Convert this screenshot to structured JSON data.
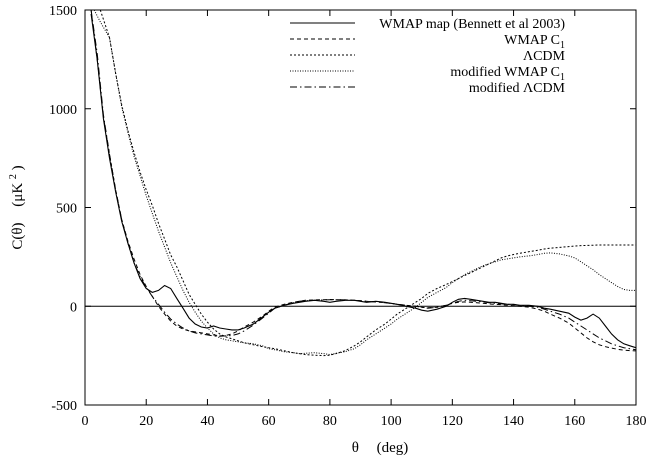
{
  "chart_data": {
    "type": "line",
    "title": "",
    "xlabel_main": "θ",
    "xlabel_unit": "(deg)",
    "ylabel_main": "C(θ)",
    "ylabel_unit": "(μK",
    "ylabel_unit_exp": "2",
    "ylabel_unit_close": ")",
    "xlim": [
      0,
      180
    ],
    "ylim": [
      -500,
      1500
    ],
    "xticks": [
      0,
      20,
      40,
      60,
      80,
      100,
      120,
      140,
      160,
      180
    ],
    "yticks": [
      -500,
      0,
      500,
      1000,
      1500
    ],
    "grid": false,
    "zero_line": true,
    "legend_position": "top-right",
    "legend": [
      {
        "text": "WMAP map (Bennett et al 2003)",
        "sub": "",
        "style": "solid"
      },
      {
        "text": "WMAP C",
        "sub": "1",
        "style": "dashed"
      },
      {
        "text": "ΛCDM",
        "sub": "",
        "style": "dashed-short"
      },
      {
        "text": "modified WMAP C",
        "sub": "1",
        "style": "dotted"
      },
      {
        "text": "modified ΛCDM",
        "sub": "",
        "style": "dashdot"
      }
    ],
    "series": [
      {
        "name": "WMAP map (Bennett et al 2003)",
        "style": "solid",
        "x": [
          2,
          4,
          6,
          8,
          10,
          12,
          14,
          16,
          18,
          20,
          22,
          24,
          26,
          28,
          30,
          32,
          34,
          36,
          38,
          40,
          42,
          44,
          46,
          48,
          50,
          52,
          55,
          58,
          60,
          62,
          65,
          68,
          70,
          72,
          75,
          78,
          80,
          82,
          85,
          88,
          90,
          92,
          95,
          98,
          100,
          102,
          105,
          108,
          110,
          112,
          115,
          118,
          120,
          122,
          124,
          126,
          128,
          130,
          132,
          134,
          136,
          138,
          140,
          142,
          145,
          148,
          150,
          152,
          155,
          158,
          160,
          162,
          164,
          166,
          168,
          170,
          172,
          174,
          176,
          178,
          180
        ],
        "y": [
          1480,
          1250,
          950,
          750,
          580,
          430,
          320,
          220,
          140,
          90,
          70,
          80,
          105,
          90,
          40,
          -10,
          -60,
          -90,
          -105,
          -110,
          -100,
          -110,
          -115,
          -120,
          -120,
          -110,
          -90,
          -55,
          -30,
          -10,
          5,
          15,
          20,
          25,
          30,
          25,
          20,
          25,
          30,
          30,
          25,
          20,
          25,
          20,
          15,
          10,
          0,
          -10,
          -20,
          -25,
          -15,
          0,
          20,
          35,
          40,
          35,
          30,
          25,
          20,
          20,
          15,
          10,
          10,
          5,
          5,
          0,
          -10,
          -15,
          -25,
          -35,
          -55,
          -70,
          -60,
          -40,
          -60,
          -100,
          -140,
          -170,
          -190,
          -200,
          -210
        ]
      },
      {
        "name": "WMAP C1",
        "style": "dashed",
        "x": [
          2,
          4,
          6,
          8,
          10,
          12,
          14,
          16,
          18,
          20,
          22,
          24,
          26,
          28,
          30,
          32,
          34,
          36,
          38,
          40,
          42,
          44,
          46,
          48,
          50,
          52,
          55,
          58,
          60,
          62,
          65,
          68,
          70,
          72,
          75,
          78,
          80,
          82,
          85,
          88,
          90,
          92,
          95,
          98,
          100,
          102,
          105,
          108,
          110,
          112,
          115,
          118,
          120,
          122,
          124,
          126,
          128,
          130,
          132,
          134,
          136,
          138,
          140,
          142,
          145,
          148,
          150,
          152,
          155,
          158,
          160,
          162,
          164,
          166,
          168,
          170,
          172,
          174,
          176,
          178,
          180
        ],
        "y": [
          1500,
          1250,
          960,
          770,
          590,
          440,
          330,
          240,
          160,
          100,
          50,
          0,
          -40,
          -75,
          -100,
          -115,
          -125,
          -130,
          -135,
          -140,
          -145,
          -150,
          -148,
          -140,
          -125,
          -105,
          -80,
          -50,
          -25,
          -5,
          10,
          20,
          25,
          30,
          32,
          33,
          34,
          33,
          32,
          30,
          28,
          25,
          22,
          18,
          15,
          10,
          5,
          0,
          -5,
          -8,
          -5,
          5,
          15,
          20,
          22,
          20,
          18,
          15,
          12,
          10,
          8,
          5,
          3,
          0,
          -5,
          -15,
          -25,
          -40,
          -60,
          -85,
          -110,
          -135,
          -160,
          -180,
          -195,
          -205,
          -212,
          -218,
          -222,
          -225,
          -226
        ]
      },
      {
        "name": "ΛCDM",
        "style": "dashed-short",
        "x": [
          5,
          8,
          10,
          12,
          14,
          16,
          18,
          20,
          22,
          24,
          26,
          28,
          30,
          32,
          34,
          36,
          38,
          40,
          42,
          44,
          46,
          48,
          50,
          52,
          55,
          58,
          60,
          62,
          65,
          68,
          70,
          72,
          75,
          78,
          80,
          82,
          85,
          88,
          90,
          92,
          95,
          98,
          100,
          102,
          105,
          108,
          110,
          112,
          115,
          118,
          120,
          122,
          124,
          126,
          128,
          130,
          132,
          134,
          136,
          138,
          140,
          142,
          145,
          148,
          150,
          152,
          155,
          158,
          160,
          162,
          164,
          166,
          168,
          170,
          172,
          174,
          176,
          178,
          180
        ],
        "y": [
          1500,
          1360,
          1180,
          1020,
          890,
          780,
          680,
          590,
          510,
          420,
          340,
          260,
          200,
          130,
          60,
          10,
          -40,
          -80,
          -115,
          -140,
          -155,
          -165,
          -175,
          -185,
          -195,
          -205,
          -210,
          -215,
          -225,
          -235,
          -240,
          -245,
          -248,
          -250,
          -248,
          -240,
          -225,
          -200,
          -180,
          -155,
          -120,
          -90,
          -65,
          -40,
          -10,
          20,
          40,
          65,
          90,
          110,
          125,
          140,
          155,
          170,
          185,
          200,
          215,
          230,
          245,
          255,
          262,
          268,
          276,
          284,
          290,
          294,
          298,
          302,
          305,
          307,
          308,
          309,
          310,
          310,
          310,
          310,
          310,
          310,
          310
        ]
      },
      {
        "name": "modified WMAP C1",
        "style": "dotted",
        "x": [
          3,
          5,
          8,
          10,
          12,
          14,
          16,
          18,
          20,
          22,
          24,
          26,
          28,
          30,
          32,
          34,
          36,
          38,
          40,
          42,
          44,
          46,
          48,
          50,
          52,
          55,
          58,
          60,
          62,
          65,
          68,
          70,
          72,
          75,
          78,
          80,
          82,
          85,
          88,
          90,
          92,
          95,
          98,
          100,
          102,
          105,
          108,
          110,
          112,
          115,
          118,
          120,
          122,
          124,
          126,
          128,
          130,
          132,
          134,
          136,
          138,
          140,
          142,
          145,
          148,
          150,
          152,
          155,
          158,
          160,
          162,
          164,
          166,
          168,
          170,
          172,
          174,
          176,
          178,
          180
        ],
        "y": [
          1500,
          1440,
          1360,
          1180,
          1010,
          880,
          760,
          660,
          560,
          470,
          380,
          300,
          220,
          150,
          80,
          20,
          -30,
          -75,
          -110,
          -140,
          -160,
          -170,
          -175,
          -180,
          -185,
          -190,
          -200,
          -215,
          -220,
          -230,
          -235,
          -240,
          -238,
          -235,
          -240,
          -245,
          -238,
          -230,
          -215,
          -195,
          -170,
          -140,
          -110,
          -90,
          -65,
          -35,
          -5,
          20,
          45,
          70,
          95,
          120,
          140,
          160,
          175,
          190,
          205,
          215,
          225,
          235,
          240,
          245,
          250,
          255,
          262,
          268,
          270,
          265,
          255,
          245,
          225,
          205,
          185,
          160,
          140,
          120,
          100,
          85,
          80,
          80
        ]
      },
      {
        "name": "modified ΛCDM",
        "style": "dashdot",
        "x": [
          2,
          4,
          6,
          8,
          10,
          12,
          14,
          16,
          18,
          20,
          22,
          24,
          26,
          28,
          30,
          32,
          34,
          36,
          38,
          40,
          42,
          44,
          46,
          48,
          50,
          52,
          55,
          58,
          60,
          62,
          65,
          68,
          70,
          72,
          75,
          78,
          80,
          82,
          85,
          88,
          90,
          92,
          95,
          98,
          100,
          102,
          105,
          108,
          110,
          112,
          115,
          118,
          120,
          122,
          124,
          126,
          128,
          130,
          132,
          134,
          136,
          138,
          140,
          142,
          145,
          148,
          150,
          152,
          155,
          158,
          160,
          162,
          164,
          166,
          168,
          170,
          172,
          174,
          176,
          178,
          180
        ],
        "y": [
          1500,
          1280,
          970,
          770,
          590,
          440,
          320,
          220,
          150,
          95,
          50,
          10,
          -30,
          -65,
          -90,
          -110,
          -125,
          -135,
          -140,
          -145,
          -150,
          -152,
          -150,
          -148,
          -140,
          -125,
          -95,
          -60,
          -35,
          -10,
          5,
          18,
          25,
          28,
          30,
          32,
          33,
          33,
          32,
          30,
          28,
          25,
          22,
          18,
          14,
          10,
          5,
          0,
          -5,
          -10,
          -5,
          5,
          15,
          25,
          30,
          28,
          25,
          22,
          18,
          15,
          12,
          10,
          8,
          5,
          0,
          -5,
          -15,
          -25,
          -40,
          -60,
          -80,
          -100,
          -120,
          -140,
          -160,
          -175,
          -190,
          -200,
          -210,
          -215,
          -220
        ]
      }
    ]
  }
}
